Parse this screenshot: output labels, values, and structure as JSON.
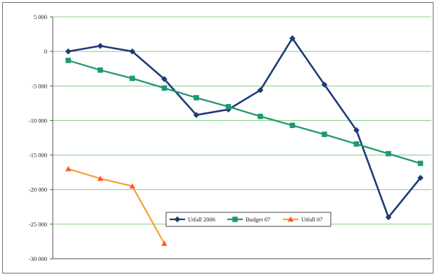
{
  "chart_data": {
    "type": "line",
    "title": "",
    "xlabel": "",
    "ylabel": "",
    "ylim": [
      -30000,
      5000
    ],
    "y_ticks": [
      {
        "value": 5000,
        "label": "5 000"
      },
      {
        "value": 0,
        "label": "0"
      },
      {
        "value": -5000,
        "label": "-5 000"
      },
      {
        "value": -10000,
        "label": "-10 000"
      },
      {
        "value": -15000,
        "label": "-15 000"
      },
      {
        "value": -20000,
        "label": "-20 000"
      },
      {
        "value": -25000,
        "label": "-25 000"
      },
      {
        "value": -30000,
        "label": "-30 000"
      }
    ],
    "x_count": 12,
    "grid": true,
    "grid_color": "#8fd18f",
    "legend_position": "bottom-center",
    "series": [
      {
        "name": "Utfall 2006",
        "color": "#1f3a78",
        "marker": "diamond",
        "values": [
          0,
          800,
          0,
          -4000,
          -9200,
          -8400,
          -5600,
          1900,
          -4800,
          -11400,
          -24000,
          -18300
        ]
      },
      {
        "name": "Budget 07",
        "color": "#1e9a6e",
        "marker": "square",
        "values": [
          -1300,
          -2700,
          -3900,
          -5300,
          -6700,
          -8000,
          -9400,
          -10700,
          -12000,
          -13400,
          -14800,
          -16200
        ]
      },
      {
        "name": "Utfall 07",
        "color": "#ff5a2a",
        "line_color": "#f6a23c",
        "marker": "triangle",
        "values": [
          -17000,
          -18400,
          -19500,
          -27800
        ]
      }
    ]
  }
}
